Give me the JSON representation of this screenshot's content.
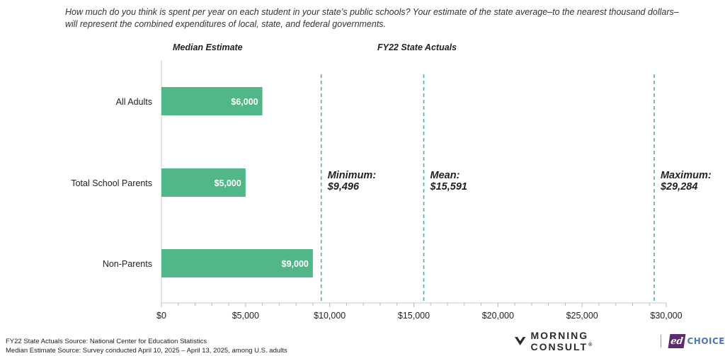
{
  "question": "How much do you think is spent per year on each student in your state’s public schools? Your estimate of the state average–to the nearest thousand dollars–will represent the combined expenditures of local, state, and federal governments.",
  "headers": {
    "median": "Median Estimate",
    "actuals": "FY22 State Actuals"
  },
  "chart_data": {
    "type": "bar",
    "orientation": "horizontal",
    "categories": [
      "All Adults",
      "Total School Parents",
      "Non-Parents"
    ],
    "values": [
      6000,
      5000,
      9000
    ],
    "value_labels": [
      "$6,000",
      "$5,000",
      "$9,000"
    ],
    "xlim": [
      0,
      30000
    ],
    "xticks": [
      0,
      5000,
      10000,
      15000,
      20000,
      25000,
      30000
    ],
    "xtick_labels": [
      "$0",
      "$5,000",
      "$10,000",
      "$15,000",
      "$20,000",
      "$25,000",
      "$30,000"
    ],
    "reference_lines": [
      {
        "label": "Minimum:",
        "value_label": "$9,496",
        "value": 9496
      },
      {
        "label": "Mean:",
        "value_label": "$15,591",
        "value": 15591
      },
      {
        "label": "Maximum:",
        "value_label": "$29,284",
        "value": 29284
      }
    ],
    "grid": false,
    "colors": {
      "bar": "#52b788",
      "reference": "#52b788",
      "axis": "#cccccc"
    }
  },
  "footer": {
    "source1": "FY22 State Actuals Source: National Center for Education Statistics",
    "source2": "Median Estimate Source: Survey conducted April 10, 2025 – April 13, 2025, among U.S. adults"
  },
  "logos": {
    "morning_consult": "MORNING CONSULT",
    "trademark": "®",
    "edchoice_mark": "ed",
    "edchoice_text": "CHOICE"
  }
}
